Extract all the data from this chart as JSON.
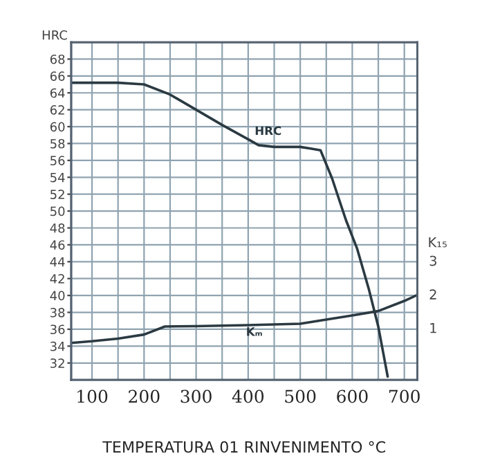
{
  "chart_data": {
    "type": "line",
    "xlabel": "TEMPERATURA 01 RINVENIMENTO °C",
    "ylabel": "HRC",
    "y2label": "K₁₅",
    "xlim": [
      60,
      725
    ],
    "xticks": [
      100,
      {
        "value": 150,
        "label": null
      },
      200,
      {
        "value": 250,
        "label": null
      },
      300,
      {
        "value": 350,
        "label": null
      },
      400,
      {
        "value": 450,
        "label": null
      },
      500,
      {
        "value": 550,
        "label": null
      },
      600,
      {
        "value": 650,
        "label": null
      },
      700
    ],
    "ylim": [
      30,
      70
    ],
    "yticks": [
      32,
      34,
      36,
      38,
      40,
      42,
      44,
      46,
      48,
      50,
      52,
      54,
      56,
      58,
      60,
      62,
      64,
      66,
      68
    ],
    "y2lim": [
      -0.55,
      9.5
    ],
    "y2ticks": [
      1,
      2,
      3
    ],
    "grid": true,
    "legend": false,
    "marker": "none",
    "line_style": "solid",
    "series": [
      {
        "color": "#2b3a42",
        "x": [
          60,
          100,
          150,
          200,
          250,
          300,
          350,
          400,
          420,
          450,
          500,
          520,
          539,
          561,
          588,
          609,
          632,
          650,
          668
        ],
        "values": [
          65.2,
          65.2,
          65.2,
          65.0,
          63.8,
          62.0,
          60.2,
          58.5,
          57.8,
          57.6,
          57.6,
          57.4,
          57.2,
          53.9,
          48.9,
          45.6,
          40.7,
          36.3,
          30.4
        ]
      },
      {
        "color": "#2b3a42",
        "axis": "y2",
        "x": [
          60,
          100,
          150,
          200,
          240,
          300,
          400,
          500,
          600,
          650,
          700,
          725
        ],
        "values": [
          0.55,
          0.6,
          0.68,
          0.8,
          1.04,
          1.05,
          1.08,
          1.12,
          1.37,
          1.5,
          1.8,
          1.98
        ]
      }
    ],
    "annotations": [
      "HRC",
      "Kₘ"
    ]
  }
}
